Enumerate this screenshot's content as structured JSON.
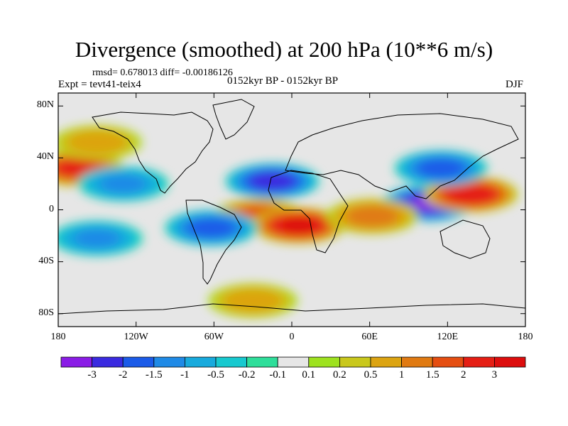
{
  "title": "Divergence (smoothed) at 200 hPa (10**6 m/s)",
  "stats": "rmsd= 0.678013 diff= -0.00186126",
  "experiment": "Expt = tevt41-teix4",
  "period": "0152kyr BP - 0152kyr BP",
  "season": "DJF",
  "map": {
    "projection": "cylindrical equidistant",
    "lon_range": [
      -180,
      180
    ],
    "lat_range": [
      -90,
      90
    ],
    "lat_ticks": [
      {
        "label": "80N",
        "value": 80
      },
      {
        "label": "40N",
        "value": 40
      },
      {
        "label": "0",
        "value": 0
      },
      {
        "label": "40S",
        "value": -40
      },
      {
        "label": "80S",
        "value": -80
      }
    ],
    "lon_ticks": [
      {
        "label": "180",
        "value": -180
      },
      {
        "label": "120W",
        "value": -120
      },
      {
        "label": "60W",
        "value": -60
      },
      {
        "label": "0",
        "value": 0
      },
      {
        "label": "60E",
        "value": 60
      },
      {
        "label": "120E",
        "value": 120
      },
      {
        "label": "180",
        "value": 180
      }
    ],
    "background_color": "#e6e6e6",
    "features": [
      {
        "name": "pacific-west-positive",
        "lon": -165,
        "lat": 32,
        "value": 2.2
      },
      {
        "name": "pacific-tropical-band-negative",
        "lon": -130,
        "lat": 20,
        "value": -1.0
      },
      {
        "name": "north-pacific-band-positive",
        "lon": -150,
        "lat": 52,
        "value": 0.6
      },
      {
        "name": "atlantic-subtropical-negative",
        "lon": -15,
        "lat": 22,
        "value": -2.4
      },
      {
        "name": "tropical-atlantic-positive",
        "lon": -25,
        "lat": -5,
        "value": 1.8
      },
      {
        "name": "africa-equatorial-max",
        "lon": 5,
        "lat": -12,
        "value": 3.0
      },
      {
        "name": "south-america-negative",
        "lon": -62,
        "lat": -14,
        "value": -1.8
      },
      {
        "name": "maritime-continent-min",
        "lon": 105,
        "lat": 5,
        "value": -3.0
      },
      {
        "name": "west-pacific-max",
        "lon": 138,
        "lat": 12,
        "value": 2.8
      },
      {
        "name": "east-asia-negative",
        "lon": 115,
        "lat": 32,
        "value": -1.8
      },
      {
        "name": "indian-ocean-positive",
        "lon": 62,
        "lat": -5,
        "value": 1.2
      },
      {
        "name": "southern-ocean-band-negative",
        "lon": -150,
        "lat": -22,
        "value": -1.0
      },
      {
        "name": "antarctic-band-positive",
        "lon": -30,
        "lat": -70,
        "value": 0.6
      }
    ]
  },
  "colorbar": {
    "labels": [
      "-3",
      "-2",
      "-1.5",
      "-1",
      "-0.5",
      "-0.2",
      "-0.1",
      "0.1",
      "0.2",
      "0.5",
      "1",
      "1.5",
      "2",
      "3"
    ],
    "colors": [
      "#8a1ce6",
      "#3a2ae0",
      "#1b5be8",
      "#1f8ae6",
      "#18aadd",
      "#17c9cf",
      "#2ede9a",
      "#e6e6e6",
      "#9ee21f",
      "#c9c81c",
      "#dca411",
      "#e07a12",
      "#e54e11",
      "#e51e14",
      "#dd0d0d"
    ]
  }
}
